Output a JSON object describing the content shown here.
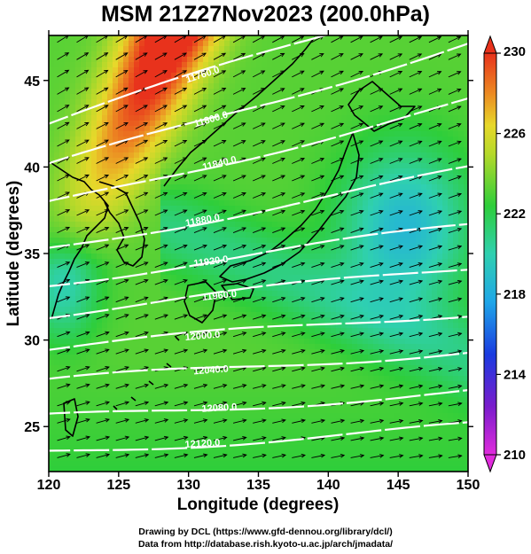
{
  "title": "MSM 21Z27Nov2023 (200.0hPa)",
  "xaxis": {
    "label": "Longitude (degrees)",
    "range": [
      120,
      150
    ],
    "ticks": [
      120,
      125,
      130,
      135,
      140,
      145,
      150
    ]
  },
  "yaxis": {
    "label": "Latitude (degrees)",
    "range": [
      22.4,
      47.6
    ],
    "ticks": [
      25,
      30,
      35,
      40,
      45
    ]
  },
  "colorbar": {
    "range": [
      210,
      230
    ],
    "ticks": [
      210,
      214,
      218,
      222,
      226,
      230
    ]
  },
  "contours": [
    {
      "label": "11760.0",
      "value": 11760,
      "lat0": 42.5,
      "slope": 0.26
    },
    {
      "label": "11800.0",
      "value": 11800,
      "lat0": 40.0,
      "slope": 0.24
    },
    {
      "label": "11840.0",
      "value": 11840,
      "lat0": 37.8,
      "slope": 0.2
    },
    {
      "label": "11880.0",
      "value": 11880,
      "lat0": 35.3,
      "slope": 0.15
    },
    {
      "label": "11920.0",
      "value": 11920,
      "lat0": 33.3,
      "slope": 0.11
    },
    {
      "label": "11960.0",
      "value": 11960,
      "lat0": 31.5,
      "slope": 0.09
    },
    {
      "label": "12000.0",
      "value": 12000,
      "lat0": 29.5,
      "slope": 0.07
    },
    {
      "label": "12040.0",
      "value": 12040,
      "lat0": 27.6,
      "slope": 0.06
    },
    {
      "label": "12080.0",
      "value": 12080,
      "lat0": 25.5,
      "slope": 0.05
    },
    {
      "label": "12120.0",
      "value": 12120,
      "lat0": 23.5,
      "slope": 0.05
    }
  ],
  "credits": {
    "line1": "Drawing by DCL (https://www.gfd-dennou.org/library/dcl/)",
    "line2": "Data from http://database.rish.kyoto-u.ac.jp/arch/jmadata/"
  }
}
